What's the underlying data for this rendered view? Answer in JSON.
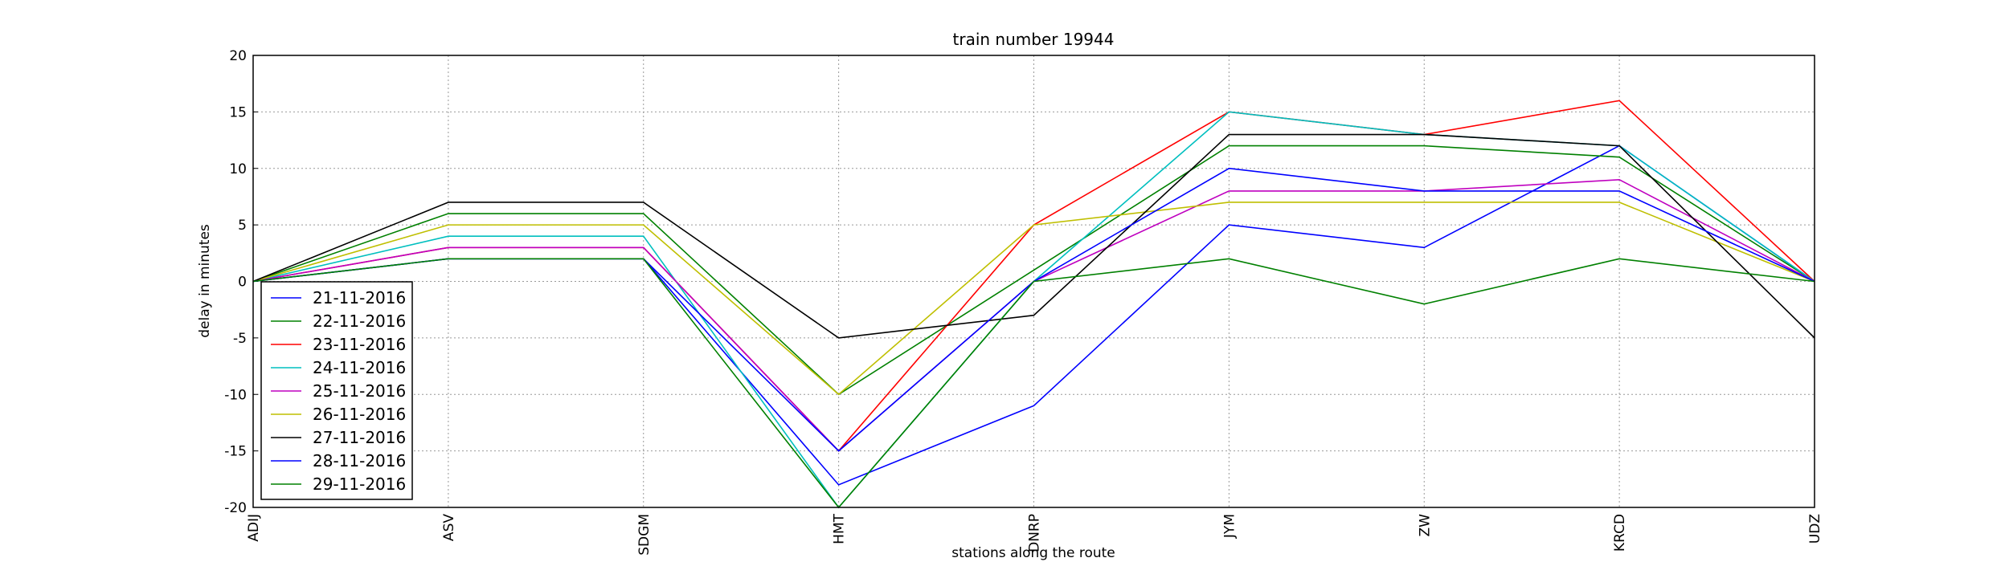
{
  "chart_data": {
    "type": "line",
    "title": "train number 19944",
    "x_label": "stations along the route",
    "y_label": "delay in minutes",
    "categories": [
      "ADIJ",
      "ASV",
      "SDGM",
      "HMT",
      "DNRP",
      "JYM",
      "ZW",
      "KRCD",
      "UDZ"
    ],
    "ylim": [
      -20,
      20
    ],
    "yticks": [
      -20,
      -15,
      -10,
      -5,
      0,
      5,
      10,
      15,
      20
    ],
    "grid": true,
    "legend": "lower left",
    "series": [
      {
        "name": "21-11-2016",
        "color": "#0000ff",
        "values": [
          0,
          2,
          2,
          -18,
          -11,
          5,
          3,
          12,
          0
        ]
      },
      {
        "name": "22-11-2016",
        "color": "#008000",
        "values": [
          0,
          6,
          6,
          -10,
          1,
          12,
          12,
          11,
          0
        ]
      },
      {
        "name": "23-11-2016",
        "color": "#ff0000",
        "values": [
          0,
          3,
          3,
          -15,
          5,
          15,
          13,
          16,
          0
        ]
      },
      {
        "name": "24-11-2016",
        "color": "#00bfbf",
        "values": [
          0,
          4,
          4,
          -20,
          0,
          15,
          13,
          12,
          0
        ]
      },
      {
        "name": "25-11-2016",
        "color": "#bf00bf",
        "values": [
          0,
          3,
          3,
          -15,
          0,
          8,
          8,
          9,
          0
        ]
      },
      {
        "name": "26-11-2016",
        "color": "#bfbf00",
        "values": [
          0,
          5,
          5,
          -10,
          5,
          7,
          7,
          7,
          0
        ]
      },
      {
        "name": "27-11-2016",
        "color": "#000000",
        "values": [
          0,
          7,
          7,
          -5,
          -3,
          13,
          13,
          12,
          -5
        ]
      },
      {
        "name": "28-11-2016",
        "color": "#0000ff",
        "values": [
          0,
          2,
          2,
          -15,
          0,
          10,
          8,
          8,
          0
        ]
      },
      {
        "name": "29-11-2016",
        "color": "#008000",
        "values": [
          0,
          2,
          2,
          -20,
          0,
          2,
          -2,
          2,
          0
        ]
      }
    ]
  }
}
